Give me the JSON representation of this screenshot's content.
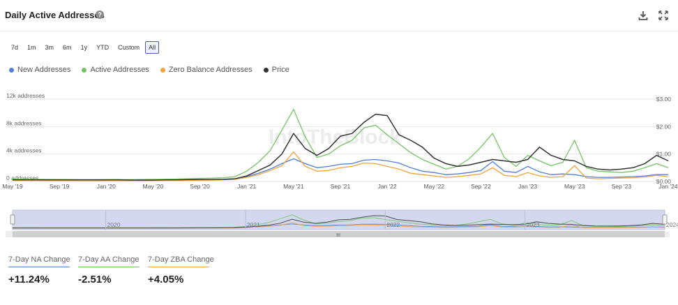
{
  "header": {
    "title": "Daily Active Addresses",
    "help_glyph": "?"
  },
  "ranges": [
    {
      "label": "7d",
      "active": false
    },
    {
      "label": "1m",
      "active": false
    },
    {
      "label": "3m",
      "active": false
    },
    {
      "label": "6m",
      "active": false
    },
    {
      "label": "1y",
      "active": false
    },
    {
      "label": "YTD",
      "active": false
    },
    {
      "label": "Custom",
      "active": false
    },
    {
      "label": "All",
      "active": true
    }
  ],
  "watermark": "IntoTheBlock",
  "navigator": {
    "year_labels": [
      "2020",
      "2021",
      "2022",
      "2023",
      "2024"
    ],
    "handle_glyph": "III"
  },
  "kpis": [
    {
      "label": "7-Day NA Change",
      "value": "+11.24%",
      "color": "#4f7fd9"
    },
    {
      "label": "7-Day AA Change",
      "value": "-2.51%",
      "color": "#74c365"
    },
    {
      "label": "7-Day ZBA Change",
      "value": "+4.05%",
      "color": "#f0a33a"
    }
  ],
  "chart_data": {
    "type": "line",
    "title": "Daily Active Addresses",
    "x": [
      "May '19",
      "Jun '19",
      "Jul '19",
      "Aug '19",
      "Sep '19",
      "Oct '19",
      "Nov '19",
      "Dec '19",
      "Jan '20",
      "Feb '20",
      "Mar '20",
      "Apr '20",
      "May '20",
      "Jun '20",
      "Jul '20",
      "Aug '20",
      "Sep '20",
      "Oct '20",
      "Nov '20",
      "Dec '20",
      "Jan '21",
      "Feb '21",
      "Mar '21",
      "Apr '21",
      "May '21",
      "Jun '21",
      "Jul '21",
      "Aug '21",
      "Sep '21",
      "Oct '21",
      "Nov '21",
      "Dec '21",
      "Jan '22",
      "Feb '22",
      "Mar '22",
      "Apr '22",
      "May '22",
      "Jun '22",
      "Jul '22",
      "Aug '22",
      "Sep '22",
      "Oct '22",
      "Nov '22",
      "Dec '22",
      "Jan '23",
      "Feb '23",
      "Mar '23",
      "Apr '23",
      "May '23",
      "Jun '23",
      "Jul '23",
      "Aug '23",
      "Sep '23",
      "Oct '23",
      "Nov '23",
      "Dec '23",
      "Jan '24"
    ],
    "x_tick_labels": [
      "May '19",
      "Sep '19",
      "Jan '20",
      "May '20",
      "Sep '20",
      "Jan '21",
      "May '21",
      "Sep '21",
      "Jan '22",
      "May '22",
      "Sep '22",
      "Jan '23",
      "May '23",
      "Sep '23",
      "Jan '24"
    ],
    "y_left": {
      "ticks": [
        "0 addresses",
        "4k addresses",
        "8k addresses",
        "12k addresses"
      ],
      "range": [
        0,
        12000
      ]
    },
    "y_right": {
      "ticks": [
        "$0.00",
        "$1.00",
        "$2.00",
        "$3.00"
      ],
      "range": [
        0,
        3
      ]
    },
    "grid": true,
    "legend_position": "top-left",
    "series": [
      {
        "name": "New Addresses",
        "color": "#4f7fd9",
        "axis": "left",
        "values": [
          200,
          180,
          170,
          160,
          150,
          150,
          140,
          140,
          150,
          160,
          150,
          160,
          170,
          180,
          200,
          230,
          250,
          260,
          300,
          400,
          700,
          1200,
          1800,
          2600,
          3300,
          2600,
          2000,
          2200,
          2500,
          2600,
          3100,
          3200,
          3000,
          2700,
          2000,
          1500,
          1300,
          1000,
          1100,
          1300,
          1600,
          2900,
          1500,
          1300,
          2200,
          1400,
          1000,
          1100,
          1000,
          700,
          600,
          600,
          650,
          700,
          800,
          1000,
          1000
        ]
      },
      {
        "name": "Active Addresses",
        "color": "#74c365",
        "axis": "left",
        "values": [
          350,
          320,
          300,
          280,
          270,
          260,
          250,
          250,
          260,
          270,
          260,
          280,
          300,
          320,
          350,
          400,
          450,
          480,
          550,
          700,
          1500,
          2800,
          4500,
          7500,
          10500,
          6500,
          3500,
          4000,
          5200,
          6000,
          7800,
          8200,
          6800,
          5500,
          4200,
          3200,
          2500,
          1800,
          2200,
          3300,
          5000,
          7000,
          3500,
          2200,
          3800,
          3000,
          2300,
          2800,
          6000,
          2000,
          1500,
          1400,
          1300,
          1500,
          2000,
          2600,
          2000
        ]
      },
      {
        "name": "Zero Balance Addresses",
        "color": "#f0a33a",
        "axis": "left",
        "values": [
          150,
          140,
          130,
          120,
          110,
          110,
          100,
          100,
          110,
          120,
          110,
          120,
          130,
          140,
          150,
          170,
          190,
          200,
          230,
          300,
          600,
          1000,
          1600,
          2300,
          4300,
          2200,
          1500,
          1600,
          2000,
          2200,
          2700,
          2600,
          2200,
          1800,
          1200,
          1000,
          800,
          600,
          700,
          900,
          1100,
          2000,
          900,
          700,
          1300,
          800,
          600,
          700,
          2300,
          500,
          400,
          450,
          500,
          550,
          650,
          900,
          700
        ]
      },
      {
        "name": "Price",
        "color": "#333333",
        "axis": "right",
        "values": [
          0.06,
          0.06,
          0.06,
          0.06,
          0.06,
          0.06,
          0.06,
          0.06,
          0.06,
          0.06,
          0.05,
          0.05,
          0.05,
          0.06,
          0.06,
          0.07,
          0.07,
          0.07,
          0.08,
          0.1,
          0.2,
          0.4,
          0.6,
          1.0,
          1.75,
          1.2,
          0.95,
          1.2,
          1.65,
          1.75,
          2.15,
          2.45,
          2.4,
          1.7,
          1.5,
          1.25,
          0.85,
          0.65,
          0.55,
          0.6,
          0.7,
          0.8,
          0.75,
          0.7,
          0.8,
          1.25,
          0.95,
          0.8,
          0.75,
          0.55,
          0.45,
          0.42,
          0.45,
          0.5,
          0.65,
          0.95,
          0.75
        ]
      }
    ]
  }
}
